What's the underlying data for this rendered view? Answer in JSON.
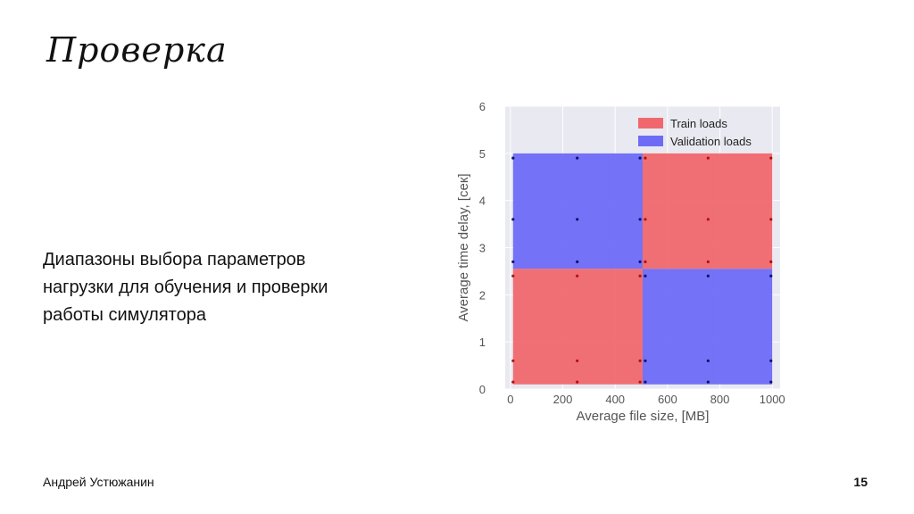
{
  "slide": {
    "title": "Проверка",
    "body_lines": [
      "Диапазоны выбора параметров",
      "нагрузки для обучения и проверки",
      "работы симулятора"
    ],
    "author": "Андрей Устюжанин",
    "page_number": "15"
  },
  "chart_data": {
    "type": "heatmap",
    "xlabel": "Average file size, [MB]",
    "ylabel": "Average time delay, [сек]",
    "xlim": [
      -20,
      1030
    ],
    "ylim": [
      0,
      6
    ],
    "xticks": [
      0,
      200,
      400,
      600,
      800,
      1000
    ],
    "yticks": [
      0,
      1,
      2,
      3,
      4,
      5,
      6
    ],
    "grid": true,
    "legend_position": "top-right",
    "colors": {
      "train": "#f0686e",
      "validation": "#6e6cf5",
      "background": "#e9e9f1",
      "train_dot": "#b01010",
      "validation_dot": "#101070"
    },
    "legend": [
      {
        "key": "train",
        "label": "Train loads"
      },
      {
        "key": "validation",
        "label": "Validation loads"
      }
    ],
    "regions": [
      {
        "key": "validation",
        "x": [
          10,
          505
        ],
        "y": [
          2.55,
          5.0
        ]
      },
      {
        "key": "train",
        "x": [
          505,
          1000
        ],
        "y": [
          2.55,
          5.0
        ]
      },
      {
        "key": "train",
        "x": [
          10,
          505
        ],
        "y": [
          0.1,
          2.55
        ]
      },
      {
        "key": "validation",
        "x": [
          505,
          1000
        ],
        "y": [
          0.1,
          2.55
        ]
      }
    ],
    "points": [
      {
        "x": 10,
        "y": 4.9,
        "key": "validation"
      },
      {
        "x": 255,
        "y": 4.9,
        "key": "validation"
      },
      {
        "x": 495,
        "y": 4.9,
        "key": "validation"
      },
      {
        "x": 10,
        "y": 3.6,
        "key": "validation"
      },
      {
        "x": 255,
        "y": 3.6,
        "key": "validation"
      },
      {
        "x": 495,
        "y": 3.6,
        "key": "validation"
      },
      {
        "x": 10,
        "y": 2.7,
        "key": "validation"
      },
      {
        "x": 255,
        "y": 2.7,
        "key": "validation"
      },
      {
        "x": 495,
        "y": 2.7,
        "key": "validation"
      },
      {
        "x": 515,
        "y": 4.9,
        "key": "train"
      },
      {
        "x": 755,
        "y": 4.9,
        "key": "train"
      },
      {
        "x": 995,
        "y": 4.9,
        "key": "train"
      },
      {
        "x": 515,
        "y": 3.6,
        "key": "train"
      },
      {
        "x": 755,
        "y": 3.6,
        "key": "train"
      },
      {
        "x": 995,
        "y": 3.6,
        "key": "train"
      },
      {
        "x": 515,
        "y": 2.7,
        "key": "train"
      },
      {
        "x": 755,
        "y": 2.7,
        "key": "train"
      },
      {
        "x": 995,
        "y": 2.7,
        "key": "train"
      },
      {
        "x": 10,
        "y": 2.4,
        "key": "train"
      },
      {
        "x": 255,
        "y": 2.4,
        "key": "train"
      },
      {
        "x": 495,
        "y": 2.4,
        "key": "train"
      },
      {
        "x": 10,
        "y": 0.6,
        "key": "train"
      },
      {
        "x": 255,
        "y": 0.6,
        "key": "train"
      },
      {
        "x": 495,
        "y": 0.6,
        "key": "train"
      },
      {
        "x": 10,
        "y": 0.15,
        "key": "train"
      },
      {
        "x": 255,
        "y": 0.15,
        "key": "train"
      },
      {
        "x": 495,
        "y": 0.15,
        "key": "train"
      },
      {
        "x": 515,
        "y": 2.4,
        "key": "validation"
      },
      {
        "x": 755,
        "y": 2.4,
        "key": "validation"
      },
      {
        "x": 995,
        "y": 2.4,
        "key": "validation"
      },
      {
        "x": 515,
        "y": 0.6,
        "key": "validation"
      },
      {
        "x": 755,
        "y": 0.6,
        "key": "validation"
      },
      {
        "x": 995,
        "y": 0.6,
        "key": "validation"
      },
      {
        "x": 515,
        "y": 0.15,
        "key": "validation"
      },
      {
        "x": 755,
        "y": 0.15,
        "key": "validation"
      },
      {
        "x": 995,
        "y": 0.15,
        "key": "validation"
      }
    ]
  }
}
